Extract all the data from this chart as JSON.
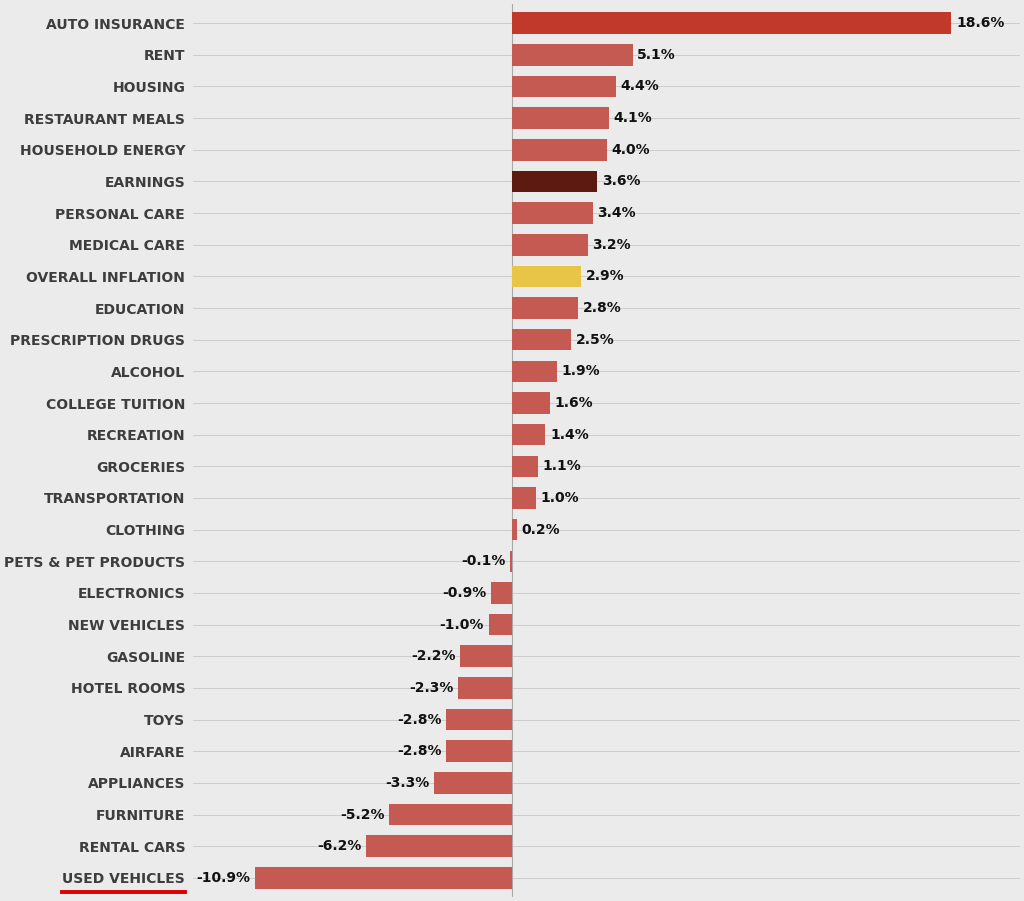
{
  "categories": [
    "AUTO INSURANCE",
    "RENT",
    "HOUSING",
    "RESTAURANT MEALS",
    "HOUSEHOLD ENERGY",
    "EARNINGS",
    "PERSONAL CARE",
    "MEDICAL CARE",
    "OVERALL INFLATION",
    "EDUCATION",
    "PRESCRIPTION DRUGS",
    "ALCOHOL",
    "COLLEGE TUITION",
    "RECREATION",
    "GROCERIES",
    "TRANSPORTATION",
    "CLOTHING",
    "PETS & PET PRODUCTS",
    "ELECTRONICS",
    "NEW VEHICLES",
    "GASOLINE",
    "HOTEL ROOMS",
    "TOYS",
    "AIRFARE",
    "APPLIANCES",
    "FURNITURE",
    "RENTAL CARS",
    "USED VEHICLES"
  ],
  "values": [
    18.6,
    5.1,
    4.4,
    4.1,
    4.0,
    3.6,
    3.4,
    3.2,
    2.9,
    2.8,
    2.5,
    1.9,
    1.6,
    1.4,
    1.1,
    1.0,
    0.2,
    -0.1,
    -0.9,
    -1.0,
    -2.2,
    -2.3,
    -2.8,
    -2.8,
    -3.3,
    -5.2,
    -6.2,
    -10.9
  ],
  "bar_colors": [
    "#c0392b",
    "#c55a52",
    "#c55a52",
    "#c55a52",
    "#c55a52",
    "#5c1a10",
    "#c55a52",
    "#c55a52",
    "#e8c547",
    "#c55a52",
    "#c55a52",
    "#c55a52",
    "#c55a52",
    "#c55a52",
    "#c55a52",
    "#c55a52",
    "#c55a52",
    "#c55a52",
    "#c55a52",
    "#c55a52",
    "#c55a52",
    "#c55a52",
    "#c55a52",
    "#c55a52",
    "#c55a52",
    "#c55a52",
    "#c55a52",
    "#c55a52"
  ],
  "background_color": "#ebebeb",
  "label_color": "#3d3d3d",
  "value_color": "#111111",
  "underline_category": "USED VEHICLES",
  "underline_color": "#dd0000",
  "xlim": [
    -13.5,
    21.5
  ],
  "label_fontsize": 10,
  "value_fontsize": 10,
  "bar_height": 0.68,
  "figsize": [
    10.24,
    9.01
  ],
  "dpi": 100
}
